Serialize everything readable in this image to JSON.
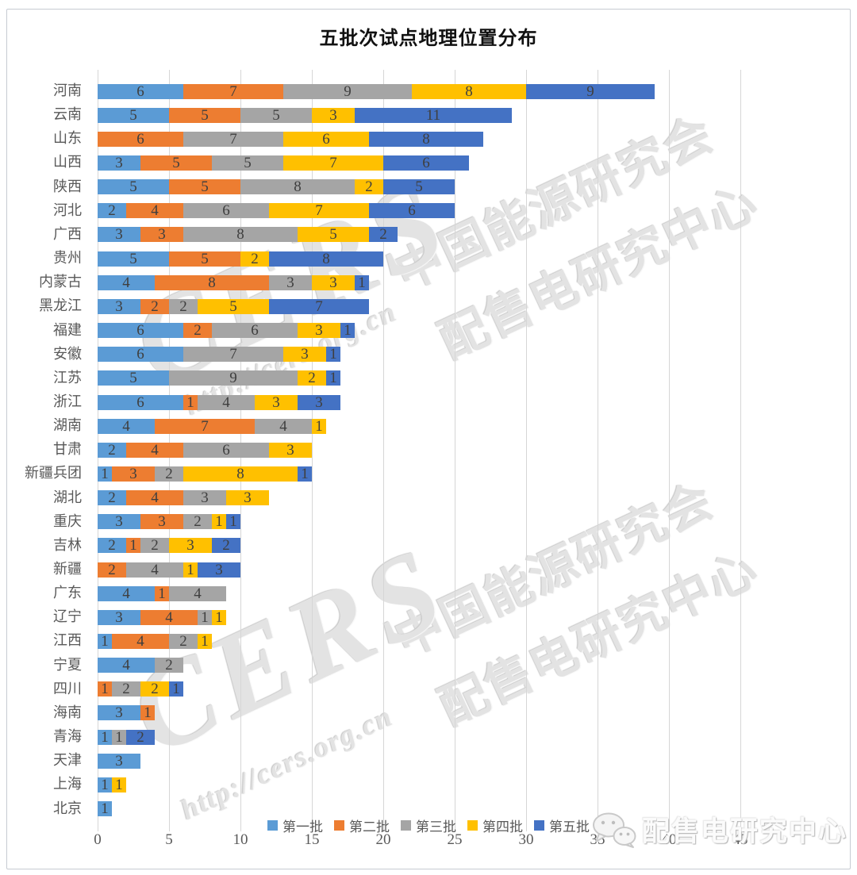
{
  "title": "五批次试点地理位置分布",
  "chart_data": {
    "type": "bar",
    "orientation": "horizontal",
    "stacked": true,
    "title": "五批次试点地理位置分布",
    "xlabel": "",
    "ylabel": "",
    "xlim": [
      0,
      45
    ],
    "x_ticks": [
      0,
      5,
      10,
      15,
      20,
      25,
      30,
      35,
      40,
      45
    ],
    "grid": true,
    "legend_position": "bottom",
    "categories": [
      "河南",
      "云南",
      "山东",
      "山西",
      "陕西",
      "河北",
      "广西",
      "贵州",
      "内蒙古",
      "黑龙江",
      "福建",
      "安徽",
      "江苏",
      "浙江",
      "湖南",
      "甘肃",
      "新疆兵团",
      "湖北",
      "重庆",
      "吉林",
      "新疆",
      "广东",
      "辽宁",
      "江西",
      "宁夏",
      "四川",
      "海南",
      "青海",
      "天津",
      "上海",
      "北京"
    ],
    "series": [
      {
        "name": "第一批",
        "color": "#5B9BD5",
        "values": [
          6,
          5,
          0,
          3,
          5,
          2,
          3,
          5,
          4,
          3,
          6,
          6,
          5,
          6,
          4,
          2,
          1,
          2,
          3,
          2,
          0,
          4,
          3,
          1,
          4,
          0,
          3,
          1,
          3,
          1,
          1
        ]
      },
      {
        "name": "第二批",
        "color": "#ED7D31",
        "values": [
          7,
          5,
          6,
          5,
          5,
          4,
          3,
          5,
          8,
          2,
          2,
          0,
          0,
          1,
          7,
          4,
          3,
          4,
          3,
          1,
          2,
          1,
          4,
          4,
          0,
          1,
          1,
          0,
          0,
          0,
          0
        ]
      },
      {
        "name": "第三批",
        "color": "#A5A5A5",
        "values": [
          9,
          5,
          7,
          5,
          8,
          6,
          8,
          0,
          3,
          2,
          6,
          7,
          9,
          4,
          4,
          6,
          2,
          3,
          2,
          2,
          4,
          4,
          1,
          2,
          2,
          2,
          0,
          1,
          0,
          0,
          0
        ]
      },
      {
        "name": "第四批",
        "color": "#FFC000",
        "values": [
          8,
          3,
          6,
          7,
          2,
          7,
          5,
          2,
          3,
          5,
          3,
          3,
          2,
          3,
          1,
          3,
          8,
          3,
          1,
          3,
          1,
          0,
          1,
          1,
          0,
          2,
          0,
          0,
          0,
          1,
          0
        ]
      },
      {
        "name": "第五批",
        "color": "#4472C4",
        "values": [
          9,
          11,
          8,
          6,
          5,
          6,
          2,
          8,
          1,
          7,
          1,
          1,
          1,
          3,
          0,
          0,
          1,
          0,
          1,
          2,
          3,
          0,
          0,
          0,
          0,
          1,
          0,
          2,
          0,
          0,
          0
        ]
      }
    ],
    "totals": [
      39,
      29,
      27,
      26,
      25,
      25,
      21,
      20,
      19,
      19,
      18,
      17,
      17,
      17,
      16,
      15,
      15,
      12,
      10,
      10,
      10,
      9,
      9,
      8,
      6,
      6,
      4,
      4,
      3,
      2,
      1
    ]
  },
  "watermark": {
    "cers": "CERS",
    "url": "http://cers.org.cn",
    "line1": "中国能源研究会",
    "line2": "配售电研究中心"
  },
  "footer_logo": {
    "icon": "wechat-icon",
    "text": "配售电研究中心"
  }
}
